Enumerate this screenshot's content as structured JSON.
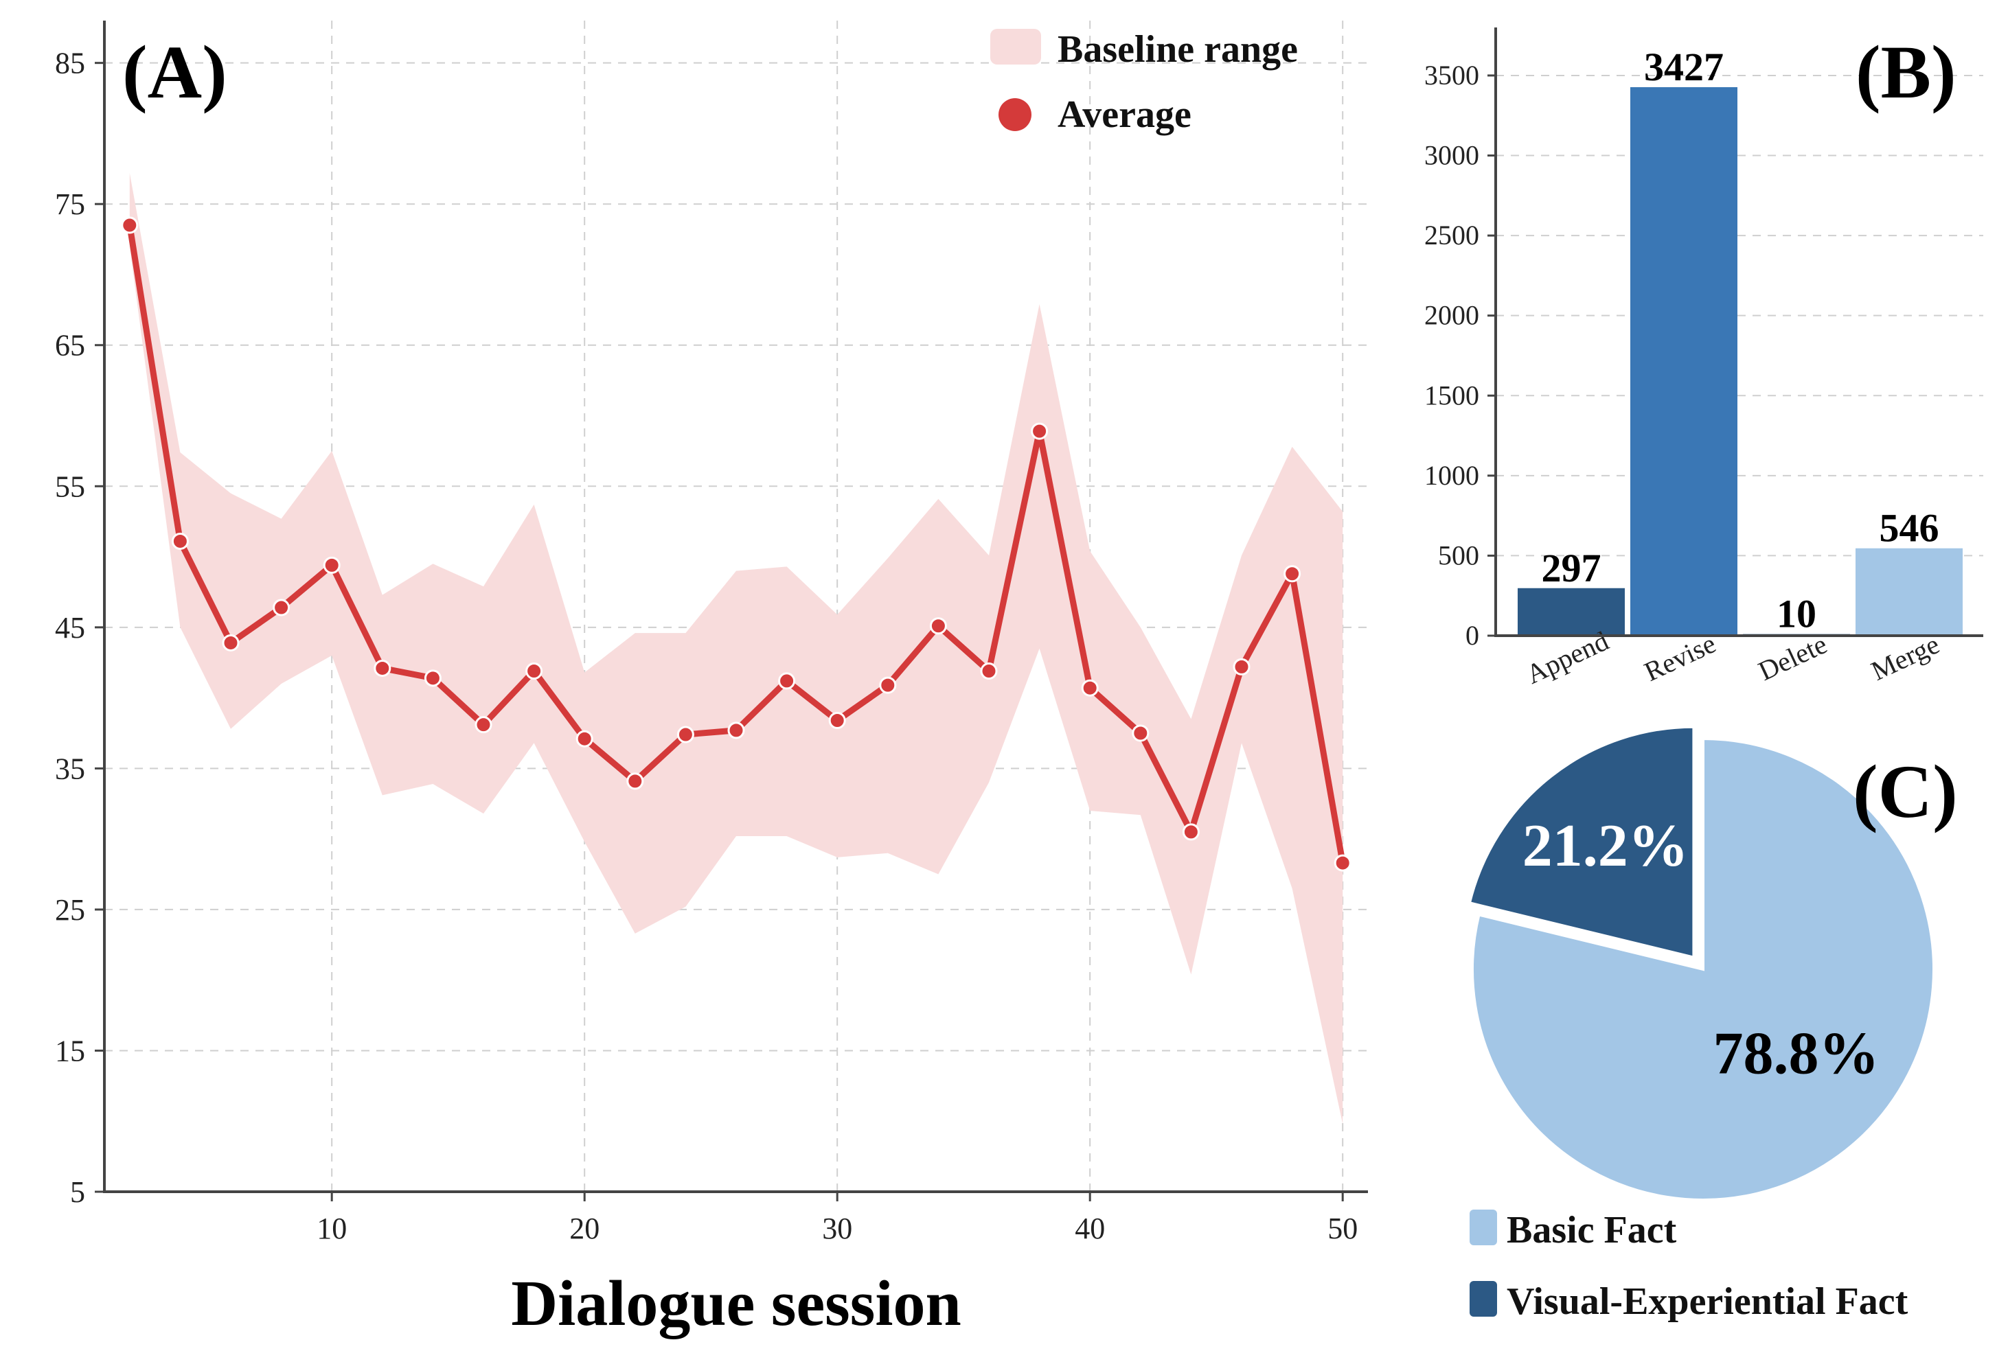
{
  "chart_data": [
    {
      "panel": "(A)",
      "type": "line",
      "xlabel": "Dialogue session",
      "ylabel": "",
      "xlim": [
        1,
        51
      ],
      "ylim": [
        5,
        88
      ],
      "xticks": [
        10,
        20,
        30,
        40,
        50
      ],
      "yticks": [
        5,
        15,
        25,
        35,
        45,
        55,
        65,
        75,
        85
      ],
      "grid": true,
      "legend_position": "top-right",
      "legend": [
        {
          "label": "Baseline range",
          "color": "#f8dcdc"
        },
        {
          "label": "Average",
          "color": "#d43a3a"
        }
      ],
      "x": [
        2,
        4,
        6,
        8,
        10,
        12,
        14,
        16,
        18,
        20,
        22,
        24,
        26,
        28,
        30,
        32,
        34,
        36,
        38,
        40,
        42,
        44,
        46,
        48,
        50
      ],
      "series": [
        {
          "name": "Average",
          "values": [
            73.5,
            51.1,
            43.9,
            46.4,
            49.4,
            42.1,
            41.4,
            38.1,
            41.9,
            37.1,
            34.1,
            37.4,
            37.7,
            41.2,
            38.4,
            40.9,
            45.1,
            41.9,
            58.9,
            40.7,
            37.5,
            30.5,
            42.2,
            48.8,
            28.3
          ]
        },
        {
          "name": "Baseline range",
          "lower": [
            72.0,
            45.0,
            37.8,
            41.0,
            43.0,
            33.1,
            33.9,
            31.8,
            36.8,
            29.8,
            23.3,
            25.2,
            30.2,
            30.2,
            28.7,
            29.0,
            27.5,
            34.0,
            43.5,
            32.0,
            31.7,
            20.4,
            36.8,
            26.5,
            9.8
          ],
          "upper": [
            77.2,
            57.4,
            54.5,
            52.7,
            57.5,
            47.3,
            49.5,
            47.9,
            53.7,
            41.8,
            44.6,
            44.6,
            49.0,
            49.3,
            45.9,
            49.9,
            54.1,
            50.1,
            67.9,
            50.4,
            45.0,
            38.5,
            50.1,
            57.8,
            53.2
          ]
        }
      ]
    },
    {
      "panel": "(B)",
      "type": "bar",
      "categories": [
        "Append",
        "Revise",
        "Delete",
        "Merge"
      ],
      "values": [
        297,
        3427,
        10,
        546
      ],
      "colors": [
        "#2c5985",
        "#3a77b5",
        "#2c5985",
        "#a3c6e6"
      ],
      "ylim": [
        0,
        3800
      ],
      "yticks": [
        0,
        500,
        1000,
        1500,
        2000,
        2500,
        3000,
        3500
      ],
      "grid": true
    },
    {
      "panel": "(C)",
      "type": "pie",
      "labels": [
        "Basic Fact",
        "Visual-Experiential Fact"
      ],
      "values": [
        78.8,
        21.2
      ],
      "value_labels": [
        "78.8%",
        "21.2%"
      ],
      "colors": [
        "#a3c6e6",
        "#2c5985"
      ],
      "label_colors": [
        "#000000",
        "#ffffff"
      ],
      "legend_position": "bottom"
    }
  ]
}
